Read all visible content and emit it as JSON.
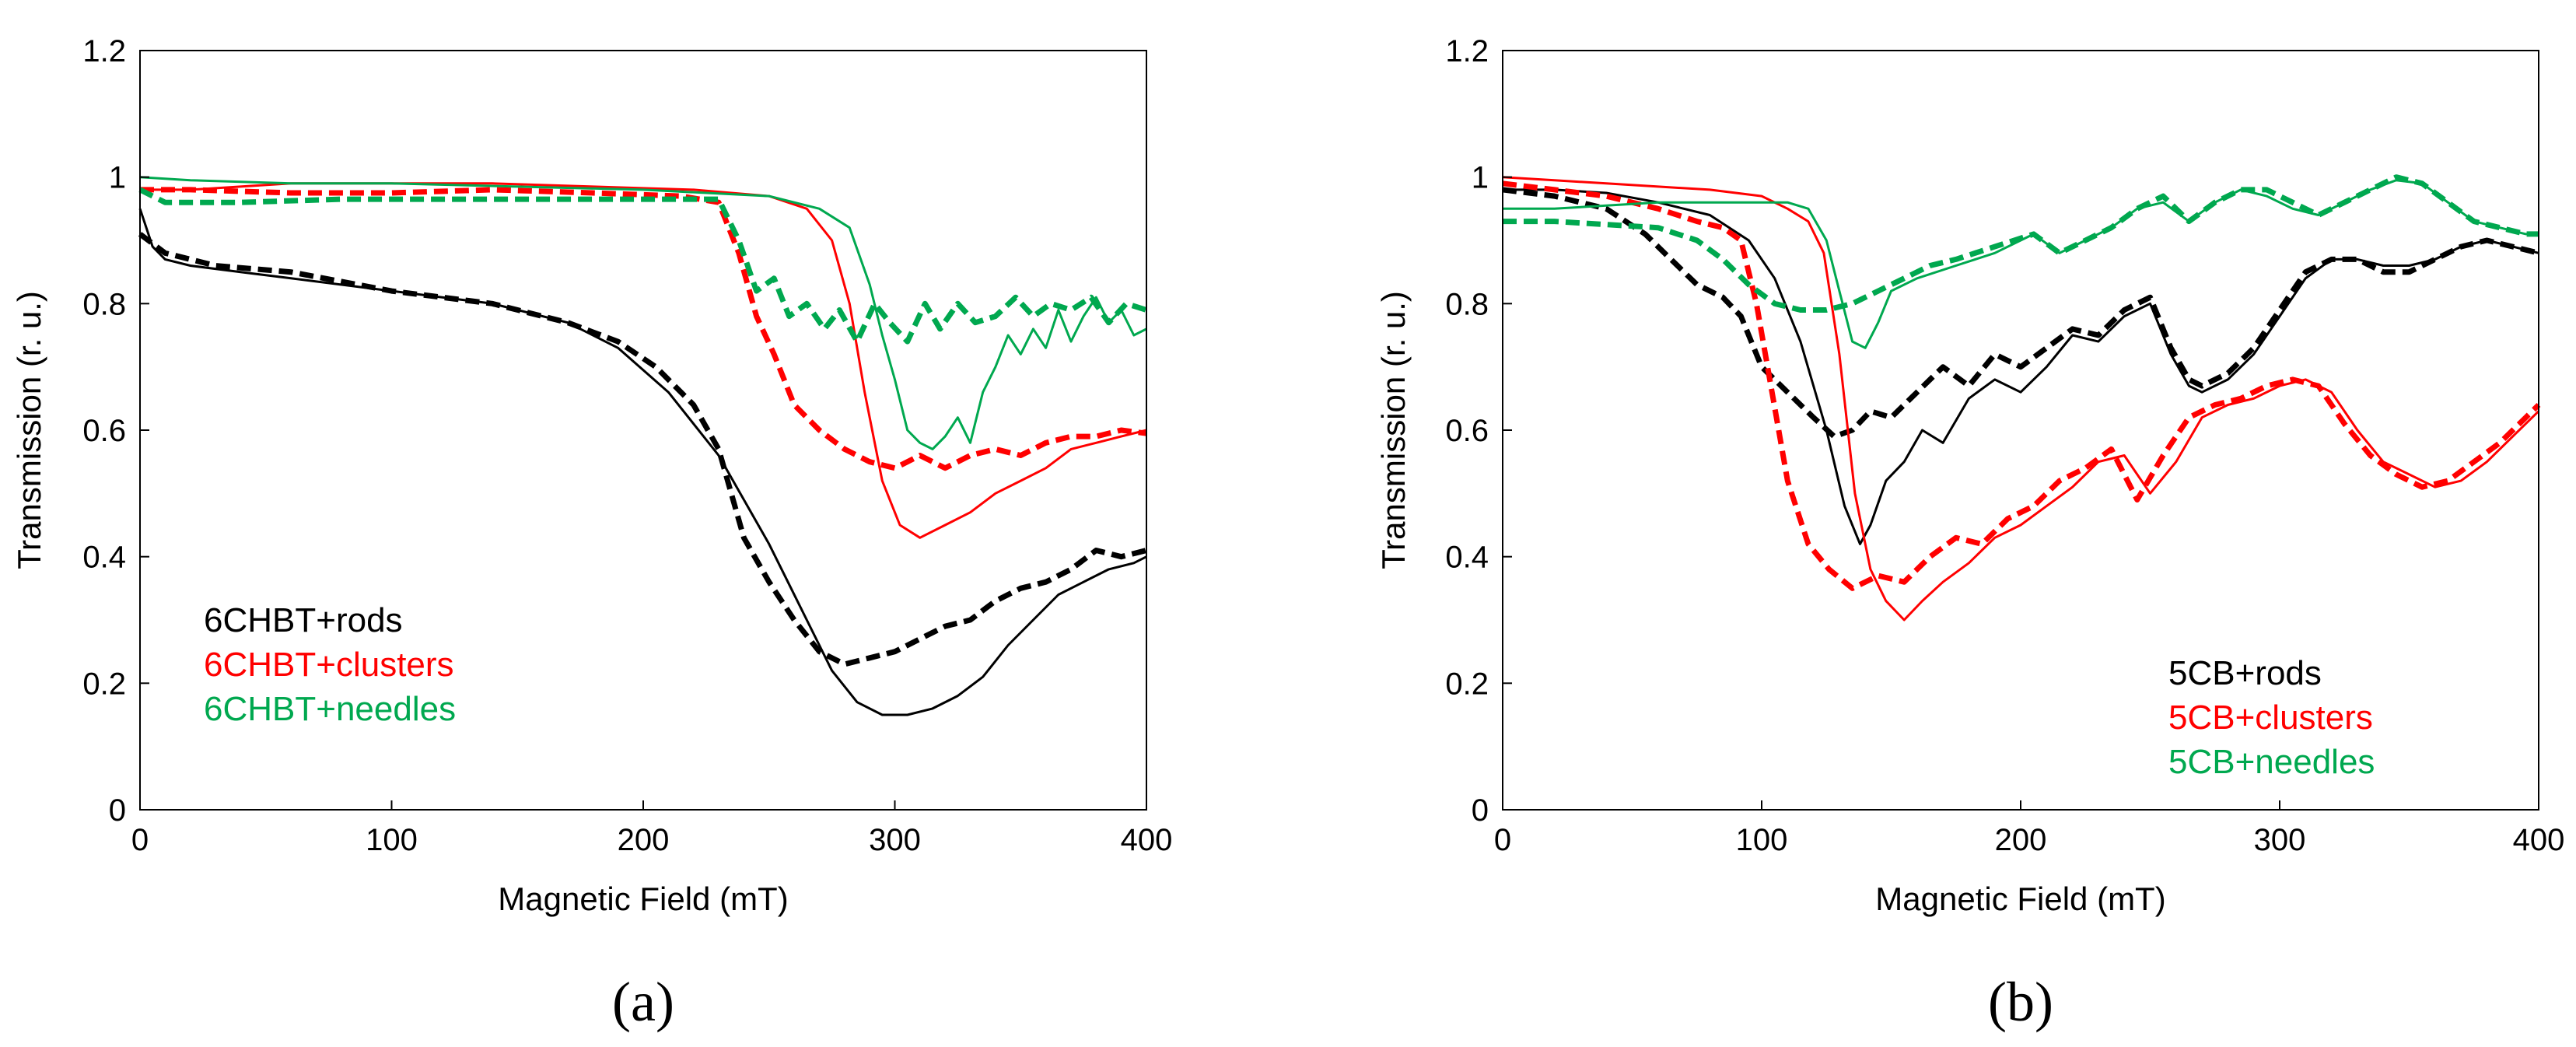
{
  "chart_data": [
    {
      "id": "a",
      "type": "line",
      "panel_label": "(a)",
      "xlabel": "Magnetic Field (mT)",
      "ylabel": "Transmission (r. u.)",
      "xlim": [
        0,
        400
      ],
      "ylim": [
        0,
        1.2
      ],
      "xticks": [
        0,
        100,
        200,
        300,
        400
      ],
      "yticks": [
        0,
        0.2,
        0.4,
        0.6,
        0.8,
        1,
        1.2
      ],
      "ytick_labels": [
        "0",
        "0.2",
        "0.4",
        "0.6",
        "0.8",
        "1",
        "1.2"
      ],
      "grid": false,
      "legend_position": "lower-left",
      "legend": [
        {
          "label": "6CHBT+rods",
          "color": "#000000"
        },
        {
          "label": "6CHBT+clusters",
          "color": "#ff0000"
        },
        {
          "label": "6CHBT+needles",
          "color": "#00a84f"
        }
      ],
      "series": [
        {
          "name": "6CHBT+rods (solid)",
          "color": "#000000",
          "style": "solid",
          "x": [
            0,
            5,
            10,
            20,
            40,
            60,
            100,
            140,
            170,
            190,
            210,
            230,
            250,
            265,
            275,
            285,
            295,
            305,
            315,
            325,
            335,
            345,
            355,
            365,
            375,
            385,
            395,
            400
          ],
          "y": [
            0.95,
            0.89,
            0.87,
            0.86,
            0.85,
            0.84,
            0.82,
            0.8,
            0.77,
            0.73,
            0.66,
            0.56,
            0.42,
            0.3,
            0.22,
            0.17,
            0.15,
            0.15,
            0.16,
            0.18,
            0.21,
            0.26,
            0.3,
            0.34,
            0.36,
            0.38,
            0.39,
            0.4
          ]
        },
        {
          "name": "6CHBT+rods (dashed)",
          "color": "#000000",
          "style": "dashed",
          "x": [
            0,
            10,
            30,
            60,
            100,
            140,
            170,
            190,
            205,
            220,
            230,
            240,
            250,
            260,
            270,
            280,
            290,
            300,
            310,
            320,
            330,
            340,
            350,
            360,
            370,
            380,
            390,
            400
          ],
          "y": [
            0.91,
            0.88,
            0.86,
            0.85,
            0.82,
            0.8,
            0.77,
            0.74,
            0.7,
            0.64,
            0.57,
            0.43,
            0.36,
            0.3,
            0.25,
            0.23,
            0.24,
            0.25,
            0.27,
            0.29,
            0.3,
            0.33,
            0.35,
            0.36,
            0.38,
            0.41,
            0.4,
            0.41
          ]
        },
        {
          "name": "6CHBT+clusters (solid)",
          "color": "#ff0000",
          "style": "solid",
          "x": [
            0,
            20,
            60,
            100,
            140,
            180,
            220,
            250,
            265,
            275,
            282,
            288,
            295,
            302,
            310,
            320,
            330,
            340,
            350,
            360,
            370,
            380,
            390,
            400
          ],
          "y": [
            0.98,
            0.98,
            0.99,
            0.99,
            0.99,
            0.985,
            0.98,
            0.97,
            0.95,
            0.9,
            0.8,
            0.66,
            0.52,
            0.45,
            0.43,
            0.45,
            0.47,
            0.5,
            0.52,
            0.54,
            0.57,
            0.58,
            0.59,
            0.6
          ]
        },
        {
          "name": "6CHBT+clusters (dashed)",
          "color": "#ff0000",
          "style": "dashed",
          "x": [
            0,
            20,
            60,
            100,
            140,
            180,
            215,
            230,
            238,
            245,
            252,
            260,
            270,
            280,
            290,
            300,
            310,
            320,
            330,
            340,
            350,
            360,
            370,
            380,
            390,
            400
          ],
          "y": [
            0.98,
            0.98,
            0.975,
            0.975,
            0.98,
            0.975,
            0.97,
            0.96,
            0.88,
            0.78,
            0.72,
            0.64,
            0.6,
            0.57,
            0.55,
            0.54,
            0.56,
            0.54,
            0.56,
            0.57,
            0.56,
            0.58,
            0.59,
            0.59,
            0.6,
            0.595
          ]
        },
        {
          "name": "6CHBT+needles (solid)",
          "color": "#00a84f",
          "style": "solid",
          "x": [
            0,
            20,
            60,
            100,
            150,
            200,
            250,
            270,
            282,
            290,
            295,
            300,
            305,
            310,
            315,
            320,
            325,
            330,
            335,
            340,
            345,
            350,
            355,
            360,
            365,
            370,
            375,
            380,
            385,
            390,
            395,
            400
          ],
          "y": [
            1.0,
            0.995,
            0.99,
            0.99,
            0.985,
            0.98,
            0.97,
            0.95,
            0.92,
            0.83,
            0.75,
            0.68,
            0.6,
            0.58,
            0.57,
            0.59,
            0.62,
            0.58,
            0.66,
            0.7,
            0.75,
            0.72,
            0.76,
            0.73,
            0.79,
            0.74,
            0.78,
            0.81,
            0.77,
            0.79,
            0.75,
            0.76
          ]
        },
        {
          "name": "6CHBT+needles (dashed)",
          "color": "#00a84f",
          "style": "dashed",
          "x": [
            0,
            10,
            40,
            80,
            120,
            160,
            200,
            230,
            238,
            245,
            252,
            258,
            265,
            272,
            278,
            285,
            292,
            298,
            305,
            312,
            318,
            325,
            332,
            340,
            348,
            355,
            362,
            370,
            378,
            385,
            392,
            400
          ],
          "y": [
            0.98,
            0.96,
            0.96,
            0.965,
            0.965,
            0.965,
            0.965,
            0.965,
            0.9,
            0.82,
            0.84,
            0.78,
            0.8,
            0.76,
            0.79,
            0.74,
            0.8,
            0.77,
            0.74,
            0.8,
            0.76,
            0.8,
            0.77,
            0.78,
            0.81,
            0.78,
            0.8,
            0.79,
            0.81,
            0.77,
            0.8,
            0.79
          ]
        }
      ]
    },
    {
      "id": "b",
      "type": "line",
      "panel_label": "(b)",
      "xlabel": "Magnetic Field (mT)",
      "ylabel": "Transmission (r. u.)",
      "xlim": [
        0,
        400
      ],
      "ylim": [
        0,
        1.2
      ],
      "xticks": [
        0,
        100,
        200,
        300,
        400
      ],
      "yticks": [
        0,
        0.2,
        0.4,
        0.6,
        0.8,
        1,
        1.2
      ],
      "ytick_labels": [
        "0",
        "0.2",
        "0.4",
        "0.6",
        "0.8",
        "1",
        "1.2"
      ],
      "grid": false,
      "legend_position": "lower-right",
      "legend": [
        {
          "label": "5CB+rods",
          "color": "#000000"
        },
        {
          "label": "5CB+clusters",
          "color": "#ff0000"
        },
        {
          "label": "5CB+needles",
          "color": "#00a84f"
        }
      ],
      "series": [
        {
          "name": "5CB+rods (solid)",
          "color": "#000000",
          "style": "solid",
          "x": [
            0,
            20,
            40,
            60,
            80,
            95,
            105,
            115,
            125,
            132,
            138,
            142,
            148,
            155,
            162,
            170,
            180,
            190,
            200,
            210,
            220,
            230,
            240,
            250,
            258,
            265,
            270,
            280,
            290,
            300,
            310,
            320,
            330,
            340,
            350,
            360,
            370,
            380,
            390,
            400
          ],
          "y": [
            0.98,
            0.98,
            0.975,
            0.96,
            0.94,
            0.9,
            0.84,
            0.74,
            0.6,
            0.48,
            0.42,
            0.45,
            0.52,
            0.55,
            0.6,
            0.58,
            0.65,
            0.68,
            0.66,
            0.7,
            0.75,
            0.74,
            0.78,
            0.8,
            0.72,
            0.67,
            0.66,
            0.68,
            0.72,
            0.78,
            0.84,
            0.87,
            0.87,
            0.86,
            0.86,
            0.87,
            0.89,
            0.9,
            0.89,
            0.88
          ]
        },
        {
          "name": "5CB+rods (dashed)",
          "color": "#000000",
          "style": "dashed",
          "x": [
            0,
            20,
            40,
            55,
            65,
            75,
            85,
            92,
            100,
            110,
            120,
            128,
            135,
            142,
            150,
            160,
            170,
            180,
            190,
            200,
            210,
            220,
            230,
            240,
            250,
            258,
            265,
            270,
            280,
            290,
            300,
            310,
            320,
            330,
            340,
            350,
            360,
            370,
            380,
            390,
            400
          ],
          "y": [
            0.98,
            0.97,
            0.95,
            0.91,
            0.87,
            0.83,
            0.81,
            0.78,
            0.7,
            0.66,
            0.62,
            0.59,
            0.6,
            0.63,
            0.62,
            0.66,
            0.7,
            0.67,
            0.72,
            0.7,
            0.73,
            0.76,
            0.75,
            0.79,
            0.81,
            0.73,
            0.68,
            0.67,
            0.69,
            0.73,
            0.79,
            0.85,
            0.87,
            0.87,
            0.85,
            0.85,
            0.87,
            0.89,
            0.9,
            0.89,
            0.88
          ]
        },
        {
          "name": "5CB+clusters (solid)",
          "color": "#ff0000",
          "style": "solid",
          "x": [
            0,
            20,
            40,
            60,
            80,
            100,
            110,
            118,
            124,
            130,
            136,
            142,
            148,
            155,
            162,
            170,
            180,
            190,
            200,
            210,
            220,
            230,
            240,
            250,
            260,
            270,
            280,
            290,
            300,
            310,
            320,
            330,
            340,
            350,
            360,
            370,
            380,
            390,
            400
          ],
          "y": [
            1.0,
            0.995,
            0.99,
            0.985,
            0.98,
            0.97,
            0.95,
            0.93,
            0.88,
            0.72,
            0.5,
            0.38,
            0.33,
            0.3,
            0.33,
            0.36,
            0.39,
            0.43,
            0.45,
            0.48,
            0.51,
            0.55,
            0.56,
            0.5,
            0.55,
            0.62,
            0.64,
            0.65,
            0.67,
            0.68,
            0.66,
            0.6,
            0.55,
            0.53,
            0.51,
            0.52,
            0.55,
            0.59,
            0.63
          ]
        },
        {
          "name": "5CB+clusters (dashed)",
          "color": "#ff0000",
          "style": "dashed",
          "x": [
            0,
            20,
            40,
            60,
            75,
            85,
            92,
            98,
            104,
            110,
            118,
            126,
            135,
            145,
            155,
            165,
            175,
            185,
            195,
            205,
            215,
            225,
            235,
            245,
            255,
            265,
            275,
            285,
            295,
            305,
            315,
            325,
            335,
            345,
            355,
            365,
            375,
            385,
            395,
            400
          ],
          "y": [
            0.99,
            0.98,
            0.97,
            0.95,
            0.93,
            0.92,
            0.9,
            0.8,
            0.66,
            0.52,
            0.42,
            0.38,
            0.35,
            0.37,
            0.36,
            0.4,
            0.43,
            0.42,
            0.46,
            0.48,
            0.52,
            0.54,
            0.57,
            0.49,
            0.56,
            0.62,
            0.64,
            0.65,
            0.67,
            0.68,
            0.67,
            0.61,
            0.56,
            0.53,
            0.51,
            0.52,
            0.55,
            0.58,
            0.62,
            0.64
          ]
        },
        {
          "name": "5CB+needles (solid)",
          "color": "#00a84f",
          "style": "solid",
          "x": [
            0,
            20,
            40,
            60,
            80,
            100,
            110,
            118,
            125,
            130,
            135,
            140,
            145,
            150,
            160,
            175,
            190,
            205,
            215,
            225,
            235,
            245,
            255,
            265,
            275,
            285,
            295,
            305,
            315,
            325,
            335,
            345,
            355,
            365,
            375,
            385,
            395,
            400
          ],
          "y": [
            0.95,
            0.95,
            0.955,
            0.96,
            0.96,
            0.96,
            0.96,
            0.95,
            0.9,
            0.82,
            0.74,
            0.73,
            0.77,
            0.82,
            0.84,
            0.86,
            0.88,
            0.91,
            0.88,
            0.9,
            0.92,
            0.95,
            0.96,
            0.93,
            0.96,
            0.98,
            0.97,
            0.95,
            0.94,
            0.96,
            0.98,
            0.995,
            0.99,
            0.96,
            0.93,
            0.92,
            0.91,
            0.91
          ]
        },
        {
          "name": "5CB+needles (dashed)",
          "color": "#00a84f",
          "style": "dashed",
          "x": [
            0,
            20,
            40,
            60,
            75,
            85,
            95,
            105,
            115,
            125,
            135,
            145,
            155,
            165,
            175,
            190,
            205,
            215,
            225,
            235,
            245,
            255,
            265,
            275,
            285,
            295,
            305,
            315,
            325,
            335,
            345,
            355,
            365,
            375,
            385,
            395,
            400
          ],
          "y": [
            0.93,
            0.93,
            0.925,
            0.92,
            0.9,
            0.87,
            0.83,
            0.8,
            0.79,
            0.79,
            0.8,
            0.82,
            0.84,
            0.86,
            0.87,
            0.89,
            0.91,
            0.88,
            0.9,
            0.92,
            0.95,
            0.97,
            0.93,
            0.96,
            0.98,
            0.98,
            0.96,
            0.94,
            0.96,
            0.98,
            1.0,
            0.99,
            0.96,
            0.93,
            0.92,
            0.91,
            0.91
          ]
        }
      ]
    }
  ]
}
